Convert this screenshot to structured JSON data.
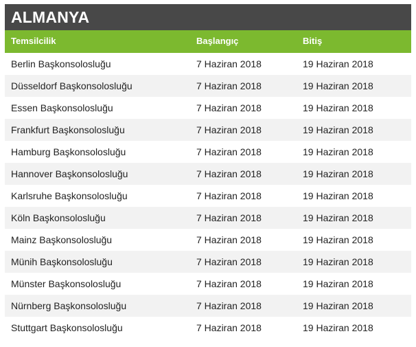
{
  "section": {
    "title": "ALMANYA"
  },
  "table": {
    "headers": [
      "Temsilcilik",
      "Başlangıç",
      "Bitiş"
    ],
    "rows": [
      [
        "Berlin Başkonsolosluğu",
        "7 Haziran 2018",
        "19 Haziran 2018"
      ],
      [
        "Düsseldorf Başkonsolosluğu",
        "7 Haziran 2018",
        "19 Haziran 2018"
      ],
      [
        "Essen Başkonsolosluğu",
        "7 Haziran 2018",
        "19 Haziran 2018"
      ],
      [
        "Frankfurt Başkonsolosluğu",
        "7 Haziran 2018",
        "19 Haziran 2018"
      ],
      [
        "Hamburg Başkonsolosluğu",
        "7 Haziran 2018",
        "19 Haziran 2018"
      ],
      [
        "Hannover Başkonsolosluğu",
        "7 Haziran 2018",
        "19 Haziran 2018"
      ],
      [
        "Karlsruhe Başkonsolosluğu",
        "7 Haziran 2018",
        "19 Haziran 2018"
      ],
      [
        "Köln Başkonsolosluğu",
        "7 Haziran 2018",
        "19 Haziran 2018"
      ],
      [
        "Mainz Başkonsolosluğu",
        "7 Haziran 2018",
        "19 Haziran 2018"
      ],
      [
        "Münih Başkonsolosluğu",
        "7 Haziran 2018",
        "19 Haziran 2018"
      ],
      [
        "Münster Başkonsolosluğu",
        "7 Haziran 2018",
        "19 Haziran 2018"
      ],
      [
        "Nürnberg Başkonsolosluğu",
        "7 Haziran 2018",
        "19 Haziran 2018"
      ],
      [
        "Stuttgart Başkonsolosluğu",
        "7 Haziran 2018",
        "19 Haziran 2018"
      ]
    ]
  },
  "colors": {
    "title_bar": "#484848",
    "header_bar": "#7cb92f",
    "stripe": "#f2f2f2"
  }
}
